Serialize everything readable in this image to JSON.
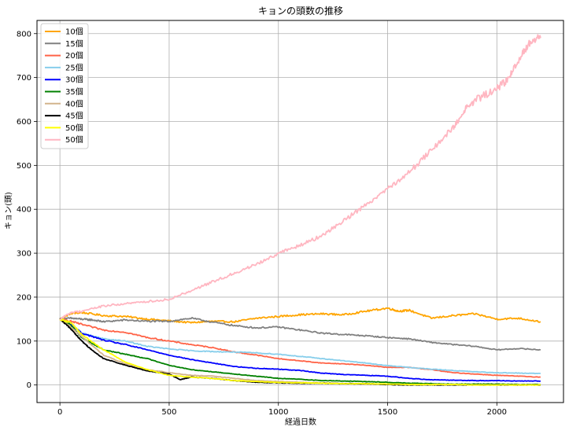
{
  "chart_data": {
    "type": "line",
    "title": "キョンの頭数の推移",
    "xlabel": "経過日数",
    "ylabel": "キョン(頭)",
    "xlim": [
      -105,
      2305
    ],
    "ylim": [
      -40,
      830
    ],
    "xticks": [
      0,
      500,
      1000,
      1500,
      2000
    ],
    "yticks": [
      0,
      100,
      200,
      300,
      400,
      500,
      600,
      700,
      800
    ],
    "grid": true,
    "legend_position": "upper-left",
    "series": [
      {
        "name": "10個",
        "color": "#ffa500",
        "points": [
          [
            0,
            150
          ],
          [
            50,
            163
          ],
          [
            100,
            165
          ],
          [
            200,
            158
          ],
          [
            300,
            156
          ],
          [
            400,
            150
          ],
          [
            500,
            146
          ],
          [
            600,
            142
          ],
          [
            700,
            145
          ],
          [
            800,
            144
          ],
          [
            900,
            152
          ],
          [
            1000,
            156
          ],
          [
            1100,
            160
          ],
          [
            1200,
            162
          ],
          [
            1300,
            160
          ],
          [
            1400,
            168
          ],
          [
            1500,
            175
          ],
          [
            1550,
            168
          ],
          [
            1600,
            170
          ],
          [
            1700,
            152
          ],
          [
            1800,
            158
          ],
          [
            1900,
            162
          ],
          [
            2000,
            150
          ],
          [
            2100,
            152
          ],
          [
            2200,
            144
          ]
        ]
      },
      {
        "name": "15個",
        "color": "#808080",
        "points": [
          [
            0,
            150
          ],
          [
            50,
            152
          ],
          [
            100,
            150
          ],
          [
            150,
            148
          ],
          [
            200,
            144
          ],
          [
            300,
            148
          ],
          [
            400,
            145
          ],
          [
            500,
            145
          ],
          [
            600,
            152
          ],
          [
            700,
            143
          ],
          [
            800,
            135
          ],
          [
            900,
            130
          ],
          [
            1000,
            132
          ],
          [
            1100,
            125
          ],
          [
            1200,
            118
          ],
          [
            1300,
            115
          ],
          [
            1400,
            112
          ],
          [
            1500,
            108
          ],
          [
            1600,
            105
          ],
          [
            1700,
            97
          ],
          [
            1800,
            92
          ],
          [
            1900,
            88
          ],
          [
            2000,
            80
          ],
          [
            2100,
            83
          ],
          [
            2200,
            80
          ]
        ]
      },
      {
        "name": "20個",
        "color": "#ff6347",
        "points": [
          [
            0,
            150
          ],
          [
            50,
            145
          ],
          [
            100,
            138
          ],
          [
            200,
            125
          ],
          [
            300,
            120
          ],
          [
            400,
            108
          ],
          [
            500,
            100
          ],
          [
            600,
            92
          ],
          [
            700,
            85
          ],
          [
            800,
            75
          ],
          [
            900,
            68
          ],
          [
            1000,
            60
          ],
          [
            1100,
            55
          ],
          [
            1200,
            50
          ],
          [
            1300,
            48
          ],
          [
            1400,
            45
          ],
          [
            1500,
            40
          ],
          [
            1600,
            40
          ],
          [
            1700,
            35
          ],
          [
            1800,
            28
          ],
          [
            1900,
            25
          ],
          [
            2000,
            22
          ],
          [
            2100,
            20
          ],
          [
            2200,
            18
          ]
        ]
      },
      {
        "name": "25個",
        "color": "#87ceeb",
        "points": [
          [
            0,
            150
          ],
          [
            50,
            140
          ],
          [
            100,
            118
          ],
          [
            200,
            105
          ],
          [
            300,
            100
          ],
          [
            400,
            88
          ],
          [
            500,
            82
          ],
          [
            600,
            78
          ],
          [
            700,
            76
          ],
          [
            800,
            75
          ],
          [
            900,
            73
          ],
          [
            1000,
            70
          ],
          [
            1100,
            65
          ],
          [
            1200,
            60
          ],
          [
            1300,
            55
          ],
          [
            1400,
            50
          ],
          [
            1500,
            44
          ],
          [
            1600,
            40
          ],
          [
            1700,
            36
          ],
          [
            1800,
            33
          ],
          [
            1900,
            30
          ],
          [
            2000,
            28
          ],
          [
            2100,
            27
          ],
          [
            2200,
            26
          ]
        ]
      },
      {
        "name": "30個",
        "color": "#0000ff",
        "points": [
          [
            0,
            150
          ],
          [
            50,
            138
          ],
          [
            100,
            118
          ],
          [
            200,
            102
          ],
          [
            300,
            92
          ],
          [
            400,
            80
          ],
          [
            500,
            68
          ],
          [
            600,
            58
          ],
          [
            700,
            50
          ],
          [
            800,
            42
          ],
          [
            900,
            38
          ],
          [
            1000,
            36
          ],
          [
            1100,
            33
          ],
          [
            1200,
            27
          ],
          [
            1300,
            24
          ],
          [
            1400,
            22
          ],
          [
            1500,
            20
          ],
          [
            1600,
            15
          ],
          [
            1700,
            12
          ],
          [
            1800,
            11
          ],
          [
            1900,
            10
          ],
          [
            2000,
            10
          ],
          [
            2100,
            9
          ],
          [
            2200,
            9
          ]
        ]
      },
      {
        "name": "35個",
        "color": "#008000",
        "points": [
          [
            0,
            150
          ],
          [
            50,
            136
          ],
          [
            100,
            108
          ],
          [
            200,
            80
          ],
          [
            300,
            70
          ],
          [
            400,
            60
          ],
          [
            500,
            45
          ],
          [
            600,
            35
          ],
          [
            700,
            30
          ],
          [
            800,
            25
          ],
          [
            900,
            20
          ],
          [
            1000,
            15
          ],
          [
            1100,
            13
          ],
          [
            1200,
            10
          ],
          [
            1300,
            9
          ],
          [
            1400,
            8
          ],
          [
            1500,
            6
          ],
          [
            1600,
            4
          ],
          [
            1700,
            3
          ],
          [
            1800,
            2
          ],
          [
            1900,
            2
          ],
          [
            2000,
            2
          ],
          [
            2100,
            1
          ],
          [
            2200,
            1
          ]
        ]
      },
      {
        "name": "40個",
        "color": "#d2b48c",
        "points": [
          [
            0,
            150
          ],
          [
            50,
            132
          ],
          [
            100,
            110
          ],
          [
            200,
            68
          ],
          [
            300,
            48
          ],
          [
            400,
            35
          ],
          [
            500,
            28
          ],
          [
            600,
            22
          ],
          [
            700,
            20
          ],
          [
            800,
            15
          ],
          [
            900,
            10
          ],
          [
            1000,
            8
          ],
          [
            1100,
            6
          ],
          [
            1200,
            5
          ],
          [
            1300,
            3
          ],
          [
            1400,
            2
          ],
          [
            1500,
            2
          ],
          [
            1600,
            1
          ],
          [
            1700,
            1
          ],
          [
            1800,
            1
          ],
          [
            1900,
            0
          ],
          [
            2000,
            0
          ],
          [
            2100,
            0
          ],
          [
            2200,
            0
          ]
        ]
      },
      {
        "name": "45個",
        "color": "#000000",
        "points": [
          [
            0,
            150
          ],
          [
            50,
            128
          ],
          [
            100,
            100
          ],
          [
            150,
            78
          ],
          [
            200,
            60
          ],
          [
            300,
            45
          ],
          [
            400,
            32
          ],
          [
            500,
            25
          ],
          [
            550,
            12
          ],
          [
            600,
            18
          ],
          [
            700,
            15
          ],
          [
            800,
            10
          ],
          [
            900,
            6
          ],
          [
            1000,
            5
          ],
          [
            1100,
            4
          ],
          [
            1200,
            4
          ],
          [
            1300,
            3
          ],
          [
            1400,
            3
          ],
          [
            1500,
            1
          ],
          [
            1600,
            0
          ],
          [
            1700,
            0
          ],
          [
            1800,
            0
          ],
          [
            1900,
            0
          ],
          [
            2000,
            0
          ],
          [
            2100,
            0
          ],
          [
            2200,
            0
          ]
        ]
      },
      {
        "name": "50個",
        "color": "#ffff00",
        "points": [
          [
            0,
            150
          ],
          [
            50,
            142
          ],
          [
            100,
            115
          ],
          [
            200,
            80
          ],
          [
            300,
            52
          ],
          [
            400,
            35
          ],
          [
            500,
            22
          ],
          [
            600,
            18
          ],
          [
            700,
            15
          ],
          [
            800,
            10
          ],
          [
            900,
            8
          ],
          [
            1000,
            6
          ],
          [
            1100,
            5
          ],
          [
            1200,
            4
          ],
          [
            1300,
            3
          ],
          [
            1400,
            3
          ],
          [
            1500,
            2
          ],
          [
            1600,
            1
          ],
          [
            1700,
            1
          ],
          [
            1800,
            1
          ],
          [
            1900,
            0
          ],
          [
            2000,
            0
          ],
          [
            2100,
            0
          ],
          [
            2200,
            0
          ]
        ]
      },
      {
        "name": "50個",
        "color": "#ffb6c1",
        "points": [
          [
            0,
            150
          ],
          [
            50,
            165
          ],
          [
            100,
            168
          ],
          [
            200,
            180
          ],
          [
            300,
            185
          ],
          [
            400,
            190
          ],
          [
            500,
            195
          ],
          [
            600,
            215
          ],
          [
            700,
            235
          ],
          [
            800,
            255
          ],
          [
            900,
            275
          ],
          [
            1000,
            300
          ],
          [
            1100,
            318
          ],
          [
            1200,
            340
          ],
          [
            1300,
            375
          ],
          [
            1400,
            410
          ],
          [
            1500,
            448
          ],
          [
            1600,
            485
          ],
          [
            1700,
            535
          ],
          [
            1800,
            585
          ],
          [
            1850,
            625
          ],
          [
            1900,
            648
          ],
          [
            2000,
            675
          ],
          [
            2050,
            695
          ],
          [
            2100,
            740
          ],
          [
            2150,
            780
          ],
          [
            2200,
            790
          ]
        ]
      }
    ]
  }
}
